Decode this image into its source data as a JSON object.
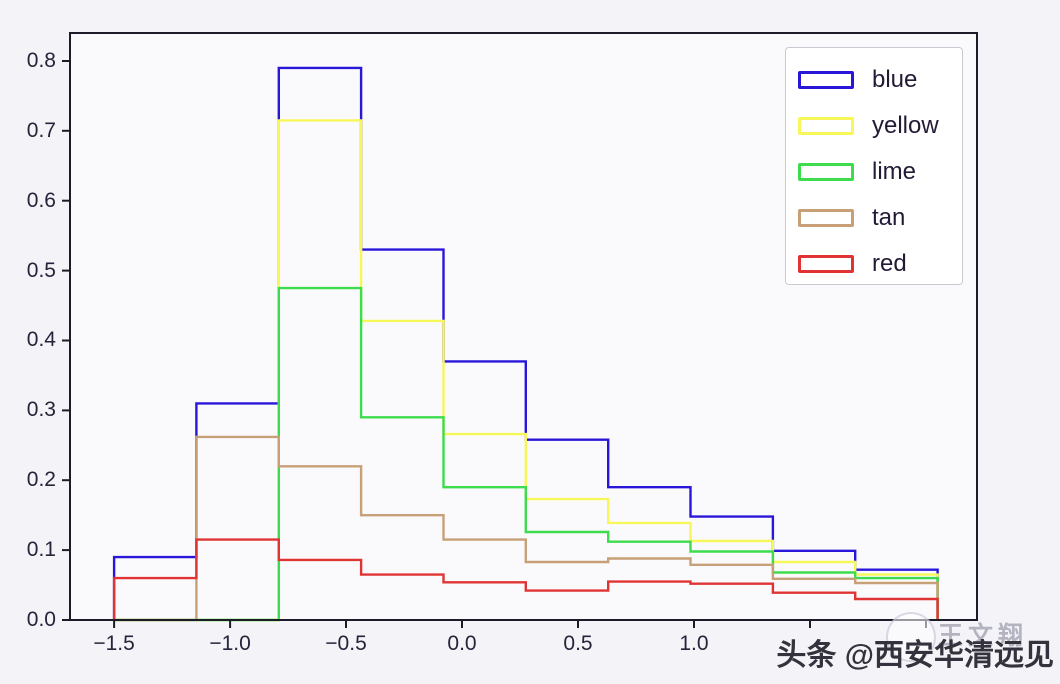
{
  "watermark": {
    "main": "头条 @西安华清远见",
    "faint": "王文翔"
  },
  "colors": {
    "page_background": "#f3f3f8",
    "plot_background": "#fafafd",
    "spine": "#1c1c28",
    "tick_label": "#29223a",
    "legend_border": "#c9c9d4",
    "watermark_text": "#34333d"
  },
  "chart_data": {
    "type": "bar",
    "subtype": "step-histogram",
    "title": "",
    "xlabel": "",
    "ylabel": "",
    "grid": false,
    "xlim": [
      -1.69,
      2.22
    ],
    "ylim": [
      0,
      0.84
    ],
    "bin_edges": [
      -1.5,
      -1.145,
      -0.79,
      -0.435,
      -0.08,
      0.275,
      0.63,
      0.985,
      1.34,
      1.695,
      2.05
    ],
    "series": [
      {
        "name": "blue",
        "color": "#2a16d8",
        "values": [
          0.09,
          0.31,
          0.79,
          0.53,
          0.37,
          0.258,
          0.19,
          0.148,
          0.099,
          0.072
        ]
      },
      {
        "name": "yellow",
        "color": "#f8f75a",
        "values": [
          0,
          0,
          0.715,
          0.428,
          0.266,
          0.173,
          0.139,
          0.113,
          0.083,
          0.065
        ]
      },
      {
        "name": "lime",
        "color": "#3cdc4c",
        "values": [
          0,
          0,
          0.475,
          0.29,
          0.19,
          0.126,
          0.112,
          0.098,
          0.068,
          0.06
        ]
      },
      {
        "name": "tan",
        "color": "#c7a077",
        "values": [
          0,
          0.262,
          0.22,
          0.15,
          0.115,
          0.083,
          0.088,
          0.079,
          0.059,
          0.053
        ]
      },
      {
        "name": "red",
        "color": "#e03434",
        "values": [
          0.06,
          0.115,
          0.086,
          0.065,
          0.054,
          0.042,
          0.055,
          0.052,
          0.039,
          0.03
        ]
      }
    ],
    "xticks": [
      -1.5,
      -1.0,
      -0.5,
      0.0,
      0.5,
      1.0,
      1.5,
      2.0
    ],
    "xtick_labels": [
      "−1.5",
      "−1.0",
      "−0.5",
      "0.0",
      "0.5",
      "1.0",
      "",
      ""
    ],
    "yticks": [
      0.0,
      0.1,
      0.2,
      0.3,
      0.4,
      0.5,
      0.6,
      0.7,
      0.8
    ],
    "ytick_labels": [
      "0.0",
      "0.1",
      "0.2",
      "0.3",
      "0.4",
      "0.5",
      "0.6",
      "0.7",
      "0.8"
    ],
    "legend": {
      "position": "upper right",
      "entries": [
        "blue",
        "yellow",
        "lime",
        "tan",
        "red"
      ]
    }
  }
}
